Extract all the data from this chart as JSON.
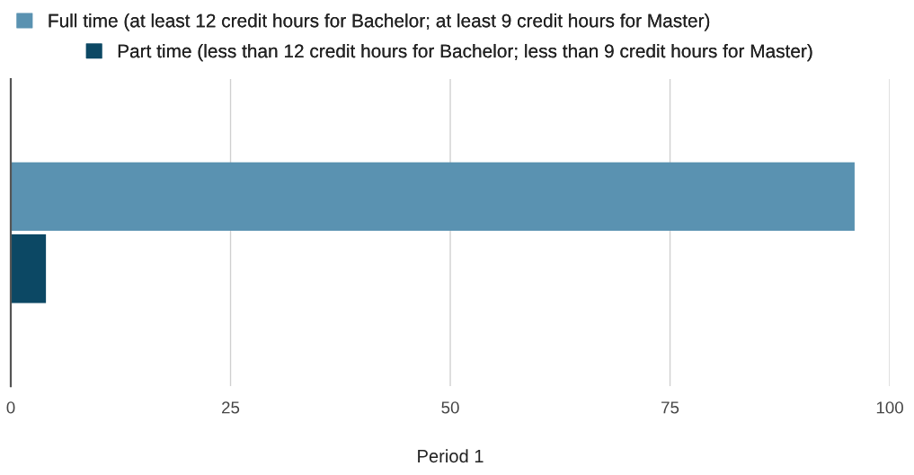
{
  "chart_data": {
    "type": "bar",
    "orientation": "horizontal",
    "xlabel": "Period 1",
    "categories": [
      null
    ],
    "series": [
      {
        "name": "Full time (at least 12 credit hours for Bachelor; at least 9 credit hours for Master)",
        "color": "#5a92b1",
        "values": [
          96
        ]
      },
      {
        "name": "Part time (less than 12 credit hours for Bachelor; less than 9 credit hours for Master)",
        "color": "#0c4864",
        "values": [
          4
        ]
      }
    ],
    "xlim": [
      0,
      100
    ],
    "xticks": [
      0,
      25,
      50,
      75,
      100
    ],
    "grid": "x",
    "legend": "top",
    "tick_labels": "x"
  }
}
